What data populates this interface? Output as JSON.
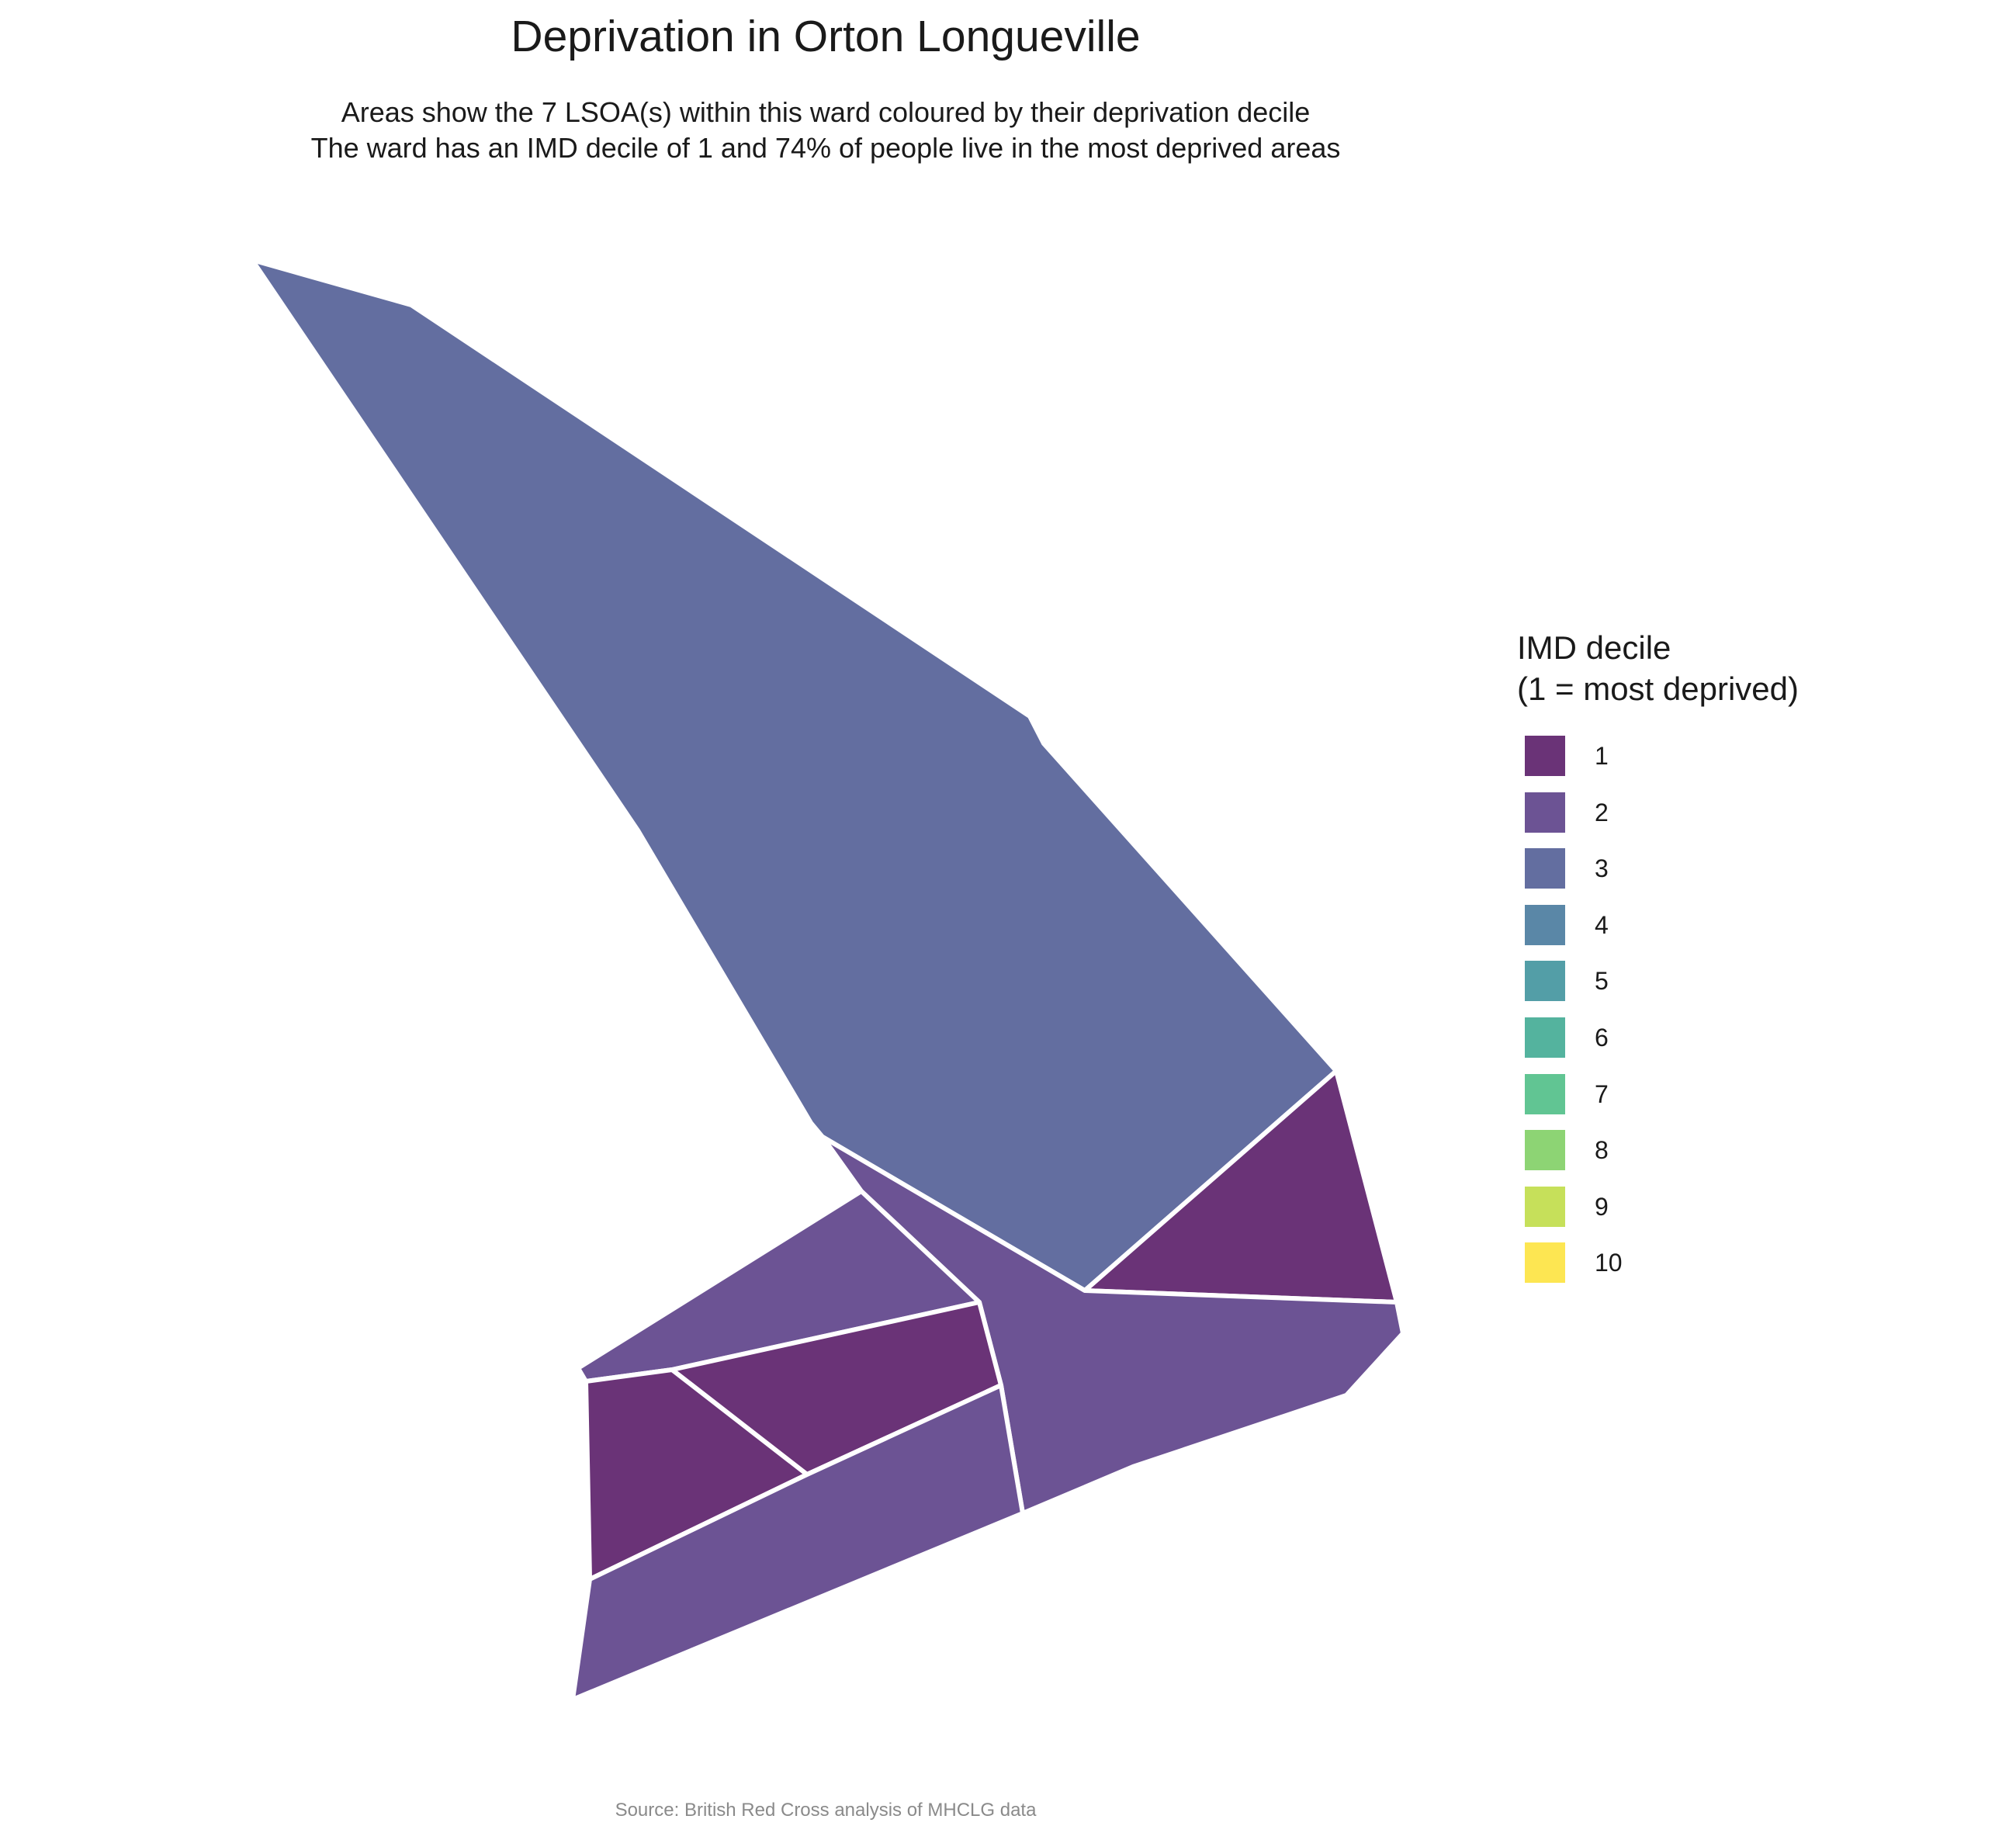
{
  "title": "Deprivation in Orton Longueville",
  "subtitle": {
    "line1": "Areas show the 7 LSOA(s) within this ward coloured by their deprivation decile",
    "line2": "The ward has an IMD decile of 1 and 74% of people live in the most deprived areas"
  },
  "legend": {
    "title_line1": "IMD decile",
    "title_line2": "(1 = most deprived)",
    "items": [
      {
        "label": "1",
        "color": "#6a3377"
      },
      {
        "label": "2",
        "color": "#6c5394"
      },
      {
        "label": "3",
        "color": "#636ea0"
      },
      {
        "label": "4",
        "color": "#5a87a7"
      },
      {
        "label": "5",
        "color": "#539ea7"
      },
      {
        "label": "6",
        "color": "#54b39e"
      },
      {
        "label": "7",
        "color": "#61c593"
      },
      {
        "label": "8",
        "color": "#8dd474"
      },
      {
        "label": "9",
        "color": "#c6e05a"
      },
      {
        "label": "10",
        "color": "#fde652"
      }
    ]
  },
  "caption": "Source: British Red Cross analysis of MHCLG data",
  "map": {
    "border_color": "#ffffff",
    "areas": [
      {
        "name": "lsoa-north",
        "decile": 3
      },
      {
        "name": "lsoa-east",
        "decile": 1
      },
      {
        "name": "lsoa-central",
        "decile": 2
      },
      {
        "name": "lsoa-west-upper",
        "decile": 2
      },
      {
        "name": "lsoa-middle",
        "decile": 1
      },
      {
        "name": "lsoa-west-lower",
        "decile": 1
      },
      {
        "name": "lsoa-south",
        "decile": 2
      }
    ]
  }
}
